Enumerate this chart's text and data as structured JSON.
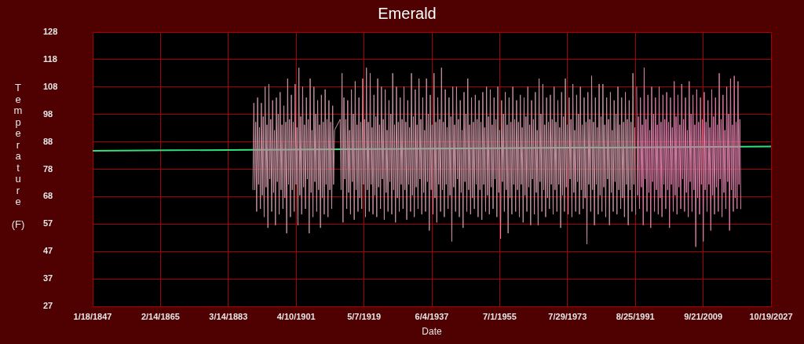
{
  "chart_data": {
    "type": "line",
    "title": "Emerald",
    "xlabel": "Date",
    "ylabel": "Temperature (F)",
    "xlim": [
      "1847-01-18",
      "2027-10-19"
    ],
    "xticks": [
      {
        "value": "1847-01-18",
        "label": "1/18/1847"
      },
      {
        "value": "1865-02-14",
        "label": "2/14/1865"
      },
      {
        "value": "1883-03-14",
        "label": "3/14/1883"
      },
      {
        "value": "1901-04-10",
        "label": "4/10/1901"
      },
      {
        "value": "1919-05-07",
        "label": "5/7/1919"
      },
      {
        "value": "1937-06-04",
        "label": "6/4/1937"
      },
      {
        "value": "1955-07-01",
        "label": "7/1/1955"
      },
      {
        "value": "1973-07-29",
        "label": "7/29/1973"
      },
      {
        "value": "1991-08-25",
        "label": "8/25/1991"
      },
      {
        "value": "2009-09-21",
        "label": "9/21/2009"
      },
      {
        "value": "2027-10-19",
        "label": "10/19/2027"
      }
    ],
    "ylim": [
      27.1,
      128.1
    ],
    "yticks": [
      {
        "value": 27.1,
        "label": "27"
      },
      {
        "value": 37.2,
        "label": "37"
      },
      {
        "value": 47.3,
        "label": "47"
      },
      {
        "value": 57.4,
        "label": "57"
      },
      {
        "value": 67.5,
        "label": "68"
      },
      {
        "value": 77.6,
        "label": "78"
      },
      {
        "value": 87.7,
        "label": "88"
      },
      {
        "value": 97.8,
        "label": "98"
      },
      {
        "value": 107.9,
        "label": "108"
      },
      {
        "value": 118,
        "label": "118"
      },
      {
        "value": 128.1,
        "label": "128"
      }
    ],
    "grid": true,
    "series": [
      {
        "color": "#c4909f",
        "x": [
          "1889-10",
          "1890-01",
          "1890-04",
          "1890-07",
          "1890-10",
          "1891-01",
          "1891-04",
          "1891-07",
          "1891-10",
          "1892-01",
          "1892-04",
          "1892-07",
          "1892-10",
          "1893-01",
          "1893-04",
          "1893-07",
          "1893-10",
          "1894-01",
          "1894-04",
          "1894-07",
          "1894-10",
          "1895-01",
          "1895-04",
          "1895-07",
          "1895-10",
          "1896-01",
          "1896-04",
          "1896-07",
          "1896-10",
          "1897-01",
          "1897-04",
          "1897-07",
          "1897-10",
          "1898-01",
          "1898-04",
          "1898-07",
          "1898-10",
          "1899-01",
          "1899-04",
          "1899-07",
          "1899-10",
          "1900-01",
          "1900-04",
          "1900-07",
          "1900-10",
          "1901-01",
          "1901-04",
          "1901-07",
          "1901-10",
          "1902-01",
          "1902-04",
          "1902-07",
          "1902-10",
          "1903-01",
          "1903-04",
          "1903-07",
          "1903-10",
          "1904-01",
          "1904-04",
          "1904-07",
          "1904-10",
          "1905-01",
          "1905-04",
          "1905-07",
          "1905-10",
          "1906-01",
          "1906-04",
          "1906-07",
          "1906-10",
          "1907-01",
          "1907-04",
          "1907-07",
          "1907-10",
          "1908-01",
          "1908-04",
          "1908-07",
          "1908-10",
          "1909-01",
          "1909-04",
          "1909-07",
          "1909-10",
          "1910-01",
          "1910-04",
          "1910-07",
          "1910-10",
          "1911-01",
          "1911-04",
          "1911-07",
          "1913-01",
          "1913-04",
          "1913-07",
          "1913-10",
          "1914-01",
          "1914-04",
          "1914-07",
          "1914-10",
          "1915-01",
          "1915-04",
          "1915-07",
          "1915-10",
          "1916-01",
          "1916-04",
          "1916-07",
          "1916-10",
          "1917-01",
          "1917-04",
          "1917-07",
          "1917-10",
          "1918-01",
          "1918-04",
          "1918-07",
          "1918-10",
          "1919-01",
          "1919-04",
          "1919-07",
          "1919-10",
          "1920-01",
          "1920-04",
          "1920-07",
          "1920-10",
          "1921-01",
          "1921-04",
          "1921-07",
          "1921-10",
          "1922-01",
          "1922-04",
          "1922-07",
          "1922-10",
          "1923-01",
          "1923-04",
          "1923-07",
          "1923-10",
          "1924-01",
          "1924-04",
          "1924-07",
          "1924-10",
          "1925-01",
          "1925-04",
          "1925-07",
          "1925-10",
          "1926-01",
          "1926-04",
          "1926-07",
          "1926-10",
          "1927-01",
          "1927-04",
          "1927-07",
          "1927-10",
          "1928-01",
          "1928-04",
          "1928-07",
          "1928-10",
          "1929-01",
          "1929-04",
          "1929-07",
          "1929-10",
          "1930-01",
          "1930-04",
          "1930-07",
          "1930-10",
          "1931-01",
          "1931-04",
          "1931-07",
          "1931-10",
          "1932-01",
          "1932-04",
          "1932-07",
          "1932-10",
          "1933-01",
          "1933-04",
          "1933-07",
          "1933-10",
          "1934-01",
          "1934-04",
          "1934-07",
          "1934-10",
          "1935-01",
          "1935-04",
          "1935-07",
          "1935-10",
          "1936-01",
          "1936-04",
          "1936-07",
          "1936-10",
          "1937-01",
          "1937-04",
          "1937-07",
          "1937-10",
          "1938-01",
          "1938-04",
          "1938-07",
          "1938-10",
          "1939-01",
          "1939-04",
          "1939-07",
          "1939-10",
          "1940-01",
          "1940-04",
          "1940-07",
          "1940-10",
          "1941-01",
          "1941-04",
          "1941-07",
          "1941-10",
          "1942-01",
          "1942-04",
          "1942-07",
          "1942-10",
          "1943-01",
          "1943-04",
          "1943-07",
          "1943-10",
          "1944-01",
          "1944-04",
          "1944-07",
          "1944-10",
          "1945-01",
          "1945-04",
          "1945-07",
          "1945-10",
          "1946-01",
          "1946-04",
          "1946-07",
          "1946-10",
          "1947-01",
          "1947-04",
          "1947-07",
          "1947-10",
          "1948-01",
          "1948-04",
          "1948-07",
          "1948-10",
          "1949-01",
          "1949-04",
          "1949-07",
          "1949-10",
          "1950-01",
          "1950-04",
          "1950-07",
          "1950-10",
          "1951-01",
          "1951-04",
          "1951-07",
          "1951-10",
          "1952-01",
          "1952-04",
          "1952-07",
          "1952-10",
          "1953-01",
          "1953-04",
          "1953-07",
          "1953-10",
          "1954-01",
          "1954-04",
          "1954-07",
          "1954-10",
          "1955-01",
          "1955-04",
          "1955-07",
          "1955-10",
          "1956-01",
          "1956-04",
          "1956-07",
          "1956-10",
          "1957-01",
          "1957-04",
          "1957-07",
          "1957-10",
          "1958-01",
          "1958-04",
          "1958-07",
          "1958-10",
          "1959-01",
          "1959-04",
          "1959-07",
          "1959-10",
          "1960-01",
          "1960-04",
          "1960-07",
          "1960-10",
          "1961-01",
          "1961-04",
          "1961-07",
          "1961-10",
          "1962-01",
          "1962-04",
          "1962-07",
          "1962-10",
          "1963-01",
          "1963-04",
          "1963-07",
          "1963-10",
          "1964-01",
          "1964-04",
          "1964-07",
          "1964-10",
          "1965-01",
          "1965-04",
          "1965-07",
          "1965-10",
          "1966-01",
          "1966-04",
          "1966-07",
          "1966-10",
          "1967-01",
          "1967-04",
          "1967-07",
          "1967-10",
          "1968-01",
          "1968-04",
          "1968-07",
          "1968-10",
          "1969-01",
          "1969-04",
          "1969-07",
          "1969-10",
          "1970-01",
          "1970-04",
          "1970-07",
          "1970-10",
          "1971-01",
          "1971-04",
          "1971-07",
          "1971-10",
          "1972-01",
          "1972-04",
          "1972-07",
          "1972-10",
          "1973-01",
          "1973-04",
          "1973-07",
          "1973-10",
          "1974-01",
          "1974-04",
          "1974-07",
          "1974-10",
          "1975-01",
          "1975-04",
          "1975-07",
          "1975-10",
          "1976-01",
          "1976-04",
          "1976-07",
          "1976-10",
          "1977-01",
          "1977-04",
          "1977-07",
          "1977-10",
          "1978-01",
          "1978-04",
          "1978-07",
          "1978-10",
          "1979-01",
          "1979-04",
          "1979-07",
          "1979-10",
          "1980-01",
          "1980-04",
          "1980-07",
          "1980-10",
          "1981-01",
          "1981-04",
          "1981-07",
          "1981-10",
          "1982-01",
          "1982-04",
          "1982-07",
          "1982-10",
          "1983-01",
          "1983-04",
          "1983-07",
          "1983-10",
          "1984-01",
          "1984-04",
          "1984-07",
          "1984-10",
          "1985-01",
          "1985-04",
          "1985-07",
          "1985-10",
          "1986-01",
          "1986-04",
          "1986-07",
          "1986-10",
          "1987-01",
          "1987-04",
          "1987-07",
          "1987-10",
          "1988-01",
          "1988-04",
          "1988-07",
          "1988-10",
          "1989-01",
          "1989-04",
          "1989-07",
          "1989-10",
          "1990-01",
          "1990-04",
          "1990-07",
          "1990-10",
          "1991-01",
          "1991-04",
          "1991-07",
          "1991-10"
        ],
        "values": [
          70,
          102,
          70,
          95,
          62,
          104,
          72,
          93,
          63,
          102,
          68,
          97,
          60,
          108,
          71,
          94,
          56,
          109,
          74,
          96,
          62,
          103,
          69,
          92,
          57,
          104,
          73,
          98,
          61,
          106,
          70,
          94,
          63,
          101,
          67,
          95,
          54,
          111,
          72,
          96,
          60,
          105,
          70,
          95,
          62,
          109,
          72,
          93,
          57,
          115,
          68,
          97,
          61,
          108,
          71,
          94,
          63,
          104,
          74,
          96,
          54,
          111,
          69,
          92,
          60,
          108,
          73,
          98,
          62,
          103,
          70,
          94,
          56,
          105,
          67,
          95,
          61,
          107,
          72,
          96,
          60,
          103,
          70,
          95,
          63,
          101,
          72,
          92,
          96,
          70,
          113,
          58,
          104,
          74,
          96,
          63,
          103,
          69,
          92,
          61,
          107,
          73,
          98,
          59,
          110,
          70,
          94,
          62,
          104,
          67,
          95,
          63,
          111,
          72,
          96,
          60,
          115,
          70,
          95,
          62,
          113,
          72,
          93,
          61,
          105,
          68,
          97,
          60,
          111,
          71,
          94,
          63,
          108,
          74,
          96,
          59,
          107,
          69,
          92,
          62,
          103,
          73,
          98,
          61,
          113,
          70,
          94,
          58,
          108,
          67,
          95,
          62,
          104,
          72,
          96,
          63,
          108,
          70,
          95,
          59,
          103,
          72,
          93,
          62,
          113,
          68,
          97,
          60,
          107,
          71,
          94,
          63,
          111,
          74,
          96,
          61,
          104,
          69,
          92,
          62,
          111,
          73,
          98,
          55,
          105,
          70,
          94,
          61,
          113,
          67,
          95,
          58,
          104,
          72,
          96,
          62,
          115,
          70,
          95,
          60,
          107,
          72,
          93,
          63,
          104,
          68,
          97,
          51,
          108,
          71,
          94,
          62,
          108,
          74,
          96,
          60,
          103,
          69,
          92,
          56,
          106,
          73,
          98,
          62,
          111,
          70,
          94,
          61,
          104,
          67,
          95,
          63,
          105,
          72,
          96,
          60,
          103,
          70,
          95,
          59,
          106,
          72,
          93,
          62,
          108,
          68,
          97,
          61,
          107,
          71,
          94,
          63,
          104,
          74,
          96,
          60,
          108,
          69,
          92,
          52,
          103,
          73,
          98,
          62,
          106,
          70,
          94,
          54,
          104,
          67,
          95,
          61,
          108,
          72,
          96,
          62,
          103,
          70,
          95,
          60,
          105,
          72,
          93,
          58,
          104,
          68,
          97,
          62,
          108,
          71,
          94,
          57,
          103,
          74,
          96,
          61,
          106,
          69,
          92,
          57,
          111,
          73,
          98,
          62,
          109,
          70,
          94,
          60,
          104,
          67,
          95,
          63,
          105,
          72,
          96,
          61,
          108,
          70,
          95,
          62,
          103,
          72,
          93,
          56,
          106,
          68,
          97,
          62,
          111,
          71,
          94,
          61,
          104,
          74,
          96,
          60,
          109,
          69,
          92,
          62,
          105,
          73,
          98,
          61,
          108,
          70,
          94,
          63,
          104,
          67,
          95,
          50,
          106,
          72,
          96,
          62,
          112,
          70,
          95,
          57,
          104,
          72,
          93,
          61,
          109,
          68,
          97,
          62,
          109,
          71,
          94,
          60,
          104,
          74,
          96,
          57,
          106,
          69,
          92,
          62,
          103,
          73,
          98,
          61,
          108,
          70,
          94,
          63,
          104,
          67,
          95,
          60,
          106,
          72,
          96,
          57,
          103,
          70,
          95,
          62,
          113,
          72,
          93,
          61
        ]
      },
      {
        "color": "#d67ba3",
        "x": [
          "1992-01",
          "1992-04",
          "1992-07",
          "1992-10",
          "1993-01",
          "1993-04",
          "1993-07",
          "1993-10",
          "1994-01",
          "1994-04",
          "1994-07",
          "1994-10",
          "1995-01",
          "1995-04",
          "1995-07",
          "1995-10",
          "1996-01",
          "1996-04",
          "1996-07",
          "1996-10",
          "1997-01",
          "1997-04",
          "1997-07",
          "1997-10",
          "1998-01",
          "1998-04",
          "1998-07",
          "1998-10",
          "1999-01",
          "1999-04",
          "1999-07",
          "1999-10",
          "2000-01",
          "2000-04",
          "2000-07",
          "2000-10",
          "2001-01",
          "2001-04",
          "2001-07",
          "2001-10",
          "2002-01",
          "2002-04",
          "2002-07",
          "2002-10",
          "2003-01",
          "2003-04",
          "2003-07",
          "2003-10",
          "2004-01",
          "2004-04",
          "2004-07",
          "2004-10",
          "2005-01",
          "2005-04",
          "2005-07",
          "2005-10",
          "2006-01",
          "2006-04",
          "2006-07",
          "2006-10",
          "2007-01",
          "2007-04",
          "2007-07",
          "2007-10",
          "2008-01",
          "2008-04",
          "2008-07",
          "2008-10",
          "2009-01",
          "2009-04",
          "2009-07",
          "2009-10",
          "2010-01",
          "2010-04",
          "2010-07",
          "2010-10",
          "2011-01",
          "2011-04",
          "2011-07",
          "2011-10",
          "2012-01",
          "2012-04",
          "2012-07",
          "2012-10",
          "2013-01",
          "2013-04",
          "2013-07",
          "2013-10",
          "2014-01",
          "2014-04",
          "2014-07",
          "2014-10",
          "2015-01",
          "2015-04",
          "2015-07",
          "2015-10",
          "2016-01",
          "2016-04",
          "2016-07",
          "2016-10",
          "2017-01",
          "2017-04",
          "2017-07",
          "2017-10",
          "2018-01",
          "2018-04",
          "2018-07",
          "2018-10",
          "2019-01",
          "2019-04",
          "2019-07",
          "2019-10"
        ],
        "values": [
          108,
          68,
          97,
          63,
          104,
          71,
          94,
          57,
          115,
          74,
          96,
          62,
          105,
          69,
          92,
          56,
          108,
          73,
          98,
          62,
          104,
          70,
          94,
          61,
          108,
          67,
          95,
          60,
          105,
          72,
          96,
          63,
          106,
          70,
          95,
          56,
          104,
          72,
          93,
          62,
          110,
          68,
          97,
          61,
          105,
          71,
          94,
          63,
          109,
          74,
          96,
          62,
          104,
          69,
          92,
          60,
          110,
          73,
          98,
          62,
          105,
          70,
          94,
          49,
          107,
          67,
          95,
          61,
          104,
          72,
          96,
          51,
          106,
          70,
          95,
          62,
          103,
          72,
          93,
          55,
          107,
          68,
          97,
          61,
          104,
          71,
          94,
          62,
          113,
          74,
          96,
          60,
          105,
          69,
          92,
          63,
          108,
          73,
          98,
          55,
          111,
          70,
          94,
          62,
          112,
          67,
          95,
          63,
          110,
          72,
          96,
          63
        ]
      },
      {
        "color": "#2fe07c",
        "x": [
          "1847-01-18",
          "2027-10-19"
        ],
        "values": [
          84.4,
          86
        ]
      }
    ]
  }
}
